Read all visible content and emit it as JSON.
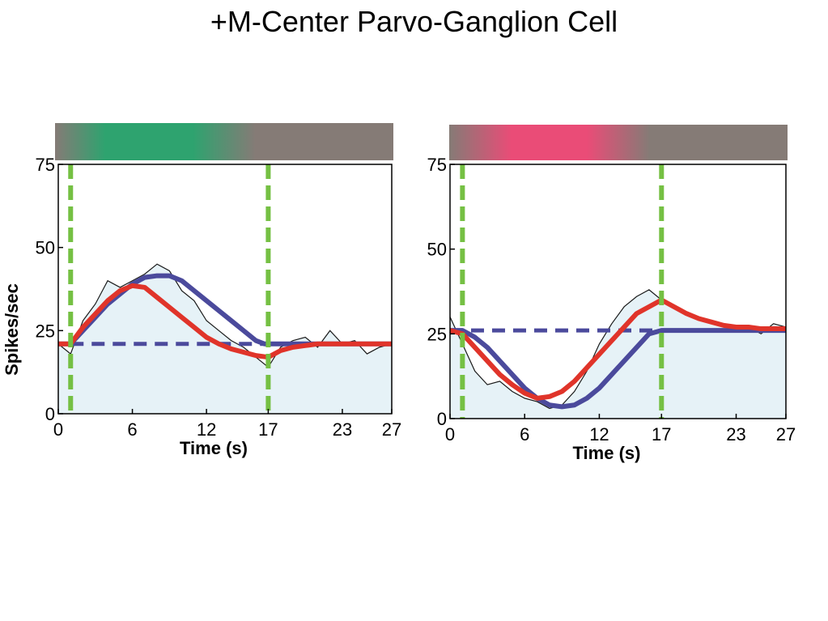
{
  "title": "+M-Center Parvo-Ganglion Cell",
  "colors": {
    "fill": "#e6f2f7",
    "noisy_trace": "#1a1a1a",
    "model_blue": "#4b4a9c",
    "model_red": "#e0342a",
    "marker_green": "#75c043",
    "gray_bar": "#857b76",
    "green_stim": "#2ea36f",
    "pink_stim": "#ea4c77"
  },
  "chart_data": [
    {
      "type": "line",
      "xlabel": "Time (s)",
      "ylabel": "Spikes/sec",
      "xlim": [
        0,
        27
      ],
      "ylim": [
        0,
        75
      ],
      "xticks": [
        0,
        6,
        12,
        17,
        23,
        27
      ],
      "yticks": [
        0,
        25,
        50,
        75
      ],
      "stimulus_bar": {
        "color": "green-stim",
        "from_gray": true,
        "peak_range": [
          4,
          11
        ],
        "end_s": 16
      },
      "vertical_markers_s": [
        1,
        17
      ],
      "baseline": 21,
      "series": [
        {
          "kind": "noisy",
          "x": [
            0,
            1,
            2,
            3,
            4,
            5,
            6,
            7,
            8,
            9,
            10,
            11,
            12,
            13,
            14,
            15,
            16,
            17,
            18,
            19,
            20,
            21,
            22,
            23,
            24,
            25,
            26,
            27
          ],
          "values": [
            21,
            18,
            28,
            33,
            40,
            38,
            40,
            42,
            45,
            43,
            37,
            34,
            28,
            25,
            22,
            20,
            17,
            14,
            20,
            22,
            23,
            20,
            25,
            21,
            22,
            18,
            20,
            21
          ]
        },
        {
          "kind": "linear-model",
          "x": [
            0,
            1,
            2,
            3,
            4,
            5,
            6,
            7,
            8,
            9,
            10,
            11,
            12,
            13,
            14,
            15,
            16,
            16.7,
            17,
            18,
            20,
            22,
            24,
            26,
            27
          ],
          "values": [
            21,
            21,
            25,
            29,
            33,
            36,
            39,
            41,
            41.5,
            41.5,
            40,
            37,
            34,
            31,
            28,
            25,
            22,
            21,
            21,
            21,
            21,
            21,
            21,
            21,
            21
          ]
        },
        {
          "kind": "nonlinear-model",
          "x": [
            0,
            1,
            2,
            3,
            4,
            5,
            6,
            7,
            8,
            9,
            10,
            11,
            12,
            13,
            14,
            15,
            16,
            17,
            18,
            19,
            20,
            21,
            22,
            23,
            24,
            25,
            26,
            27
          ],
          "values": [
            21,
            21,
            26,
            30,
            34,
            37,
            38.5,
            38,
            35,
            32,
            29,
            26,
            23,
            21,
            19.5,
            18.5,
            17.5,
            17,
            19,
            20,
            20.5,
            21,
            21,
            21,
            21,
            21,
            21,
            21
          ]
        },
        {
          "kind": "baseline-dashed",
          "x": [
            1,
            17
          ],
          "values": [
            21,
            21
          ]
        }
      ]
    },
    {
      "type": "line",
      "xlabel": "Time (s)",
      "ylabel": "",
      "xlim": [
        0,
        27
      ],
      "ylim": [
        0,
        75
      ],
      "xticks": [
        0,
        6,
        12,
        17,
        23,
        27
      ],
      "yticks": [
        0,
        25,
        50,
        75
      ],
      "stimulus_bar": {
        "color": "pink-stim",
        "from_gray": true,
        "peak_range": [
          5,
          11
        ],
        "end_s": 16
      },
      "vertical_markers_s": [
        1,
        17
      ],
      "baseline": 26,
      "series": [
        {
          "kind": "noisy",
          "x": [
            0,
            1,
            2,
            3,
            4,
            5,
            6,
            7,
            8,
            9,
            10,
            11,
            12,
            13,
            14,
            15,
            16,
            17,
            18,
            19,
            20,
            21,
            22,
            23,
            24,
            25,
            26,
            27
          ],
          "values": [
            30,
            22,
            14,
            10,
            11,
            8,
            6,
            5,
            3,
            4,
            8,
            14,
            22,
            28,
            33,
            36,
            38,
            35,
            33,
            31,
            30,
            29,
            28,
            26,
            27,
            25,
            28,
            27
          ]
        },
        {
          "kind": "linear-model",
          "x": [
            0,
            1,
            2,
            3,
            4,
            5,
            6,
            7,
            8,
            9,
            10,
            11,
            12,
            13,
            14,
            15,
            16,
            17,
            18,
            20,
            22,
            24,
            26,
            27
          ],
          "values": [
            26,
            26,
            24,
            21,
            17,
            13,
            9,
            6,
            4,
            3.5,
            4,
            6,
            9,
            13,
            17,
            21,
            25,
            26,
            26,
            26,
            26,
            26,
            26,
            26
          ]
        },
        {
          "kind": "nonlinear-model",
          "x": [
            0,
            1,
            2,
            3,
            4,
            5,
            6,
            7,
            8,
            9,
            10,
            11,
            12,
            13,
            14,
            15,
            16,
            17,
            18,
            19,
            20,
            21,
            22,
            23,
            24,
            25,
            26,
            27
          ],
          "values": [
            26,
            25,
            21,
            17,
            13,
            10,
            7.5,
            6,
            6.5,
            8,
            11,
            15,
            19,
            23,
            27,
            31,
            33,
            35,
            33,
            31,
            29.5,
            28.5,
            27.5,
            27,
            27,
            26.5,
            26.5,
            26.5
          ]
        },
        {
          "kind": "baseline-dashed",
          "x": [
            0,
            17
          ],
          "values": [
            26,
            26
          ]
        }
      ]
    }
  ]
}
